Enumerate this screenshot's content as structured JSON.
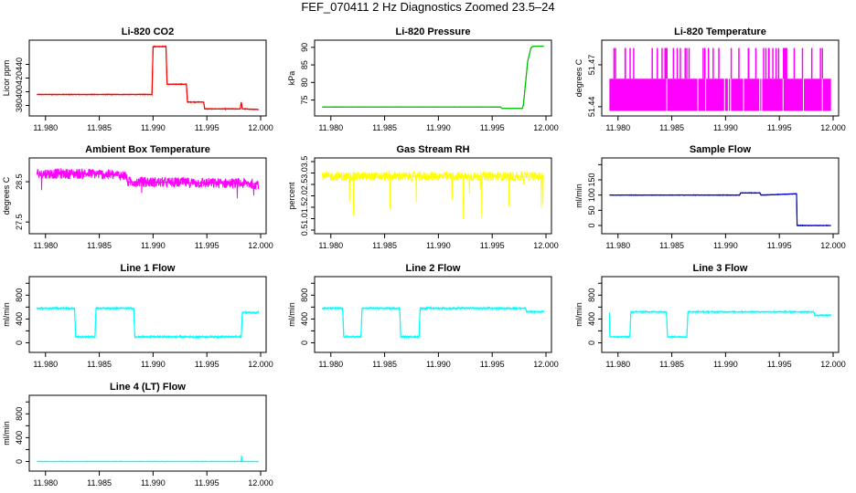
{
  "figure": {
    "title": "FEF_070411  2 Hz Diagnostics Zoomed 23.5–24",
    "colors": {
      "red": "#ff0000",
      "green": "#00bb00",
      "magenta": "#ff00ff",
      "yellow": "#ffff00",
      "blue": "#0000cc",
      "cyan": "#00ffff"
    }
  },
  "chart_data": [
    {
      "type": "line",
      "title": "Li-820 CO2",
      "ylabel": "Licor ppm",
      "color": "#ff0000",
      "xlim": [
        11.979,
        12.0
      ],
      "ylim": [
        370,
        470
      ],
      "xticks": [
        "11.980",
        "11.985",
        "11.990",
        "11.995",
        "12.000"
      ],
      "yticks": [
        "380",
        "400",
        "420",
        "440"
      ],
      "noise": 0.6,
      "series": [
        {
          "x": [
            11.9792,
            11.9899,
            11.99,
            11.9912,
            11.9913,
            11.9931,
            11.9932,
            11.9947,
            11.9948,
            11.9981,
            11.9982,
            11.9983,
            11.9984,
            11.9998
          ],
          "y": [
            396,
            396,
            466,
            466,
            411,
            411,
            385,
            385,
            375,
            375,
            385,
            375,
            375,
            374
          ]
        }
      ]
    },
    {
      "type": "line",
      "title": "Li-820 Pressure",
      "ylabel": "kPa",
      "color": "#00bb00",
      "xlim": [
        11.979,
        12.0
      ],
      "ylim": [
        71.5,
        91
      ],
      "xticks": [
        "11.980",
        "11.985",
        "11.990",
        "11.995",
        "12.000"
      ],
      "yticks": [
        "75",
        "80",
        "85",
        "90"
      ],
      "noise": 0.05,
      "series": [
        {
          "x": [
            11.9792,
            11.9958,
            11.9959,
            11.9978,
            11.9979,
            11.9983,
            11.9986,
            11.9988,
            11.9998
          ],
          "y": [
            73,
            73,
            72.6,
            72.6,
            73.5,
            86,
            89.8,
            90.3,
            90.3
          ]
        }
      ]
    },
    {
      "type": "step",
      "title": "Li-820 Temperature",
      "ylabel": "degrees C",
      "color": "#ff00ff",
      "xlim": [
        11.979,
        12.0
      ],
      "ylim": [
        51.436,
        51.485
      ],
      "xticks": [
        "11.980",
        "11.985",
        "11.990",
        "11.995",
        "12.000"
      ],
      "yticks": [
        "51.44",
        "51.47"
      ],
      "levels": [
        51.437,
        51.46,
        51.482
      ],
      "series": [
        {
          "x": [
            11.9792,
            11.9998
          ],
          "y": [
            51.46,
            51.46
          ]
        }
      ]
    },
    {
      "type": "line",
      "title": "Ambient Box Temperature",
      "ylabel": "degrees C",
      "color": "#ff00ff",
      "xlim": [
        11.979,
        12.0
      ],
      "ylim": [
        27.3,
        29.0
      ],
      "xticks": [
        "11.980",
        "11.985",
        "11.990",
        "11.995",
        "12.000"
      ],
      "yticks": [
        "27.5",
        "28.5"
      ],
      "noise": 0.13,
      "series": [
        {
          "x": [
            11.9792,
            11.9845,
            11.9875,
            11.9876,
            11.9998
          ],
          "y": [
            28.7,
            28.7,
            28.65,
            28.5,
            28.45
          ]
        }
      ]
    },
    {
      "type": "line",
      "title": "Gas Stream RH",
      "ylabel": "percent",
      "color": "#ffff00",
      "xlim": [
        11.979,
        12.0
      ],
      "ylim": [
        0.5,
        3.5
      ],
      "xticks": [
        "11.980",
        "11.985",
        "11.990",
        "11.995",
        "12.000"
      ],
      "yticks": [
        "0.5",
        "1.5",
        "2.5",
        "3.5"
      ],
      "ytick_values": [
        0.5,
        1.0,
        1.5,
        2.0,
        2.5,
        3.0,
        3.5
      ],
      "ytick_labels": [
        "0.5",
        "1.0",
        "1.5",
        "2.0",
        "2.5",
        "3.0",
        "3.5"
      ],
      "noise": 0.2,
      "series": [
        {
          "x": [
            11.9792,
            11.9998
          ],
          "y": [
            2.85,
            2.85
          ]
        }
      ]
    },
    {
      "type": "line",
      "title": "Sample Flow",
      "ylabel": "ml/min",
      "color": "#0000cc",
      "xlim": [
        11.979,
        12.0
      ],
      "ylim": [
        -15,
        210
      ],
      "xticks": [
        "11.980",
        "11.985",
        "11.990",
        "11.995",
        "12.000"
      ],
      "ytick_values": [
        0,
        50,
        100,
        150,
        200
      ],
      "ytick_labels": [
        "0",
        "50",
        "100",
        "150",
        ""
      ],
      "noise": 1.0,
      "series": [
        {
          "x": [
            11.9792,
            11.9913,
            11.9914,
            11.9932,
            11.9933,
            11.9966,
            11.99665,
            11.9998
          ],
          "y": [
            100,
            100,
            107,
            107,
            100,
            104,
            0,
            0
          ]
        }
      ]
    },
    {
      "type": "line",
      "title": "Line 1 Flow",
      "ylabel": "ml/min",
      "color": "#00ffff",
      "xlim": [
        11.979,
        12.0
      ],
      "ylim": [
        -100,
        1050
      ],
      "xticks": [
        "11.980",
        "11.985",
        "11.990",
        "11.995",
        "12.000"
      ],
      "ytick_values": [
        0,
        200,
        400,
        600,
        800,
        1000
      ],
      "ytick_labels": [
        "0",
        "",
        "400",
        "",
        "800",
        ""
      ],
      "noise": 15,
      "series": [
        {
          "x": [
            11.9792,
            11.9827,
            11.9828,
            11.9846,
            11.9847,
            11.9882,
            11.9883,
            11.9982,
            11.9983,
            11.9998
          ],
          "y": [
            580,
            580,
            100,
            100,
            580,
            580,
            100,
            100,
            510,
            510
          ]
        }
      ]
    },
    {
      "type": "line",
      "title": "Line 2 Flow",
      "ylabel": "ml/min",
      "color": "#00ffff",
      "xlim": [
        11.979,
        12.0
      ],
      "ylim": [
        -100,
        1050
      ],
      "xticks": [
        "11.980",
        "11.985",
        "11.990",
        "11.995",
        "12.000"
      ],
      "ytick_values": [
        0,
        200,
        400,
        600,
        800,
        1000
      ],
      "ytick_labels": [
        "0",
        "",
        "400",
        "",
        "800",
        ""
      ],
      "noise": 15,
      "series": [
        {
          "x": [
            11.9792,
            11.9811,
            11.9812,
            11.9828,
            11.9829,
            11.9864,
            11.9865,
            11.9882,
            11.9883,
            11.9981,
            11.9982,
            11.9998
          ],
          "y": [
            580,
            580,
            100,
            100,
            580,
            580,
            100,
            100,
            580,
            580,
            520,
            520
          ]
        }
      ]
    },
    {
      "type": "line",
      "title": "Line 3 Flow",
      "ylabel": "ml/min",
      "color": "#00ffff",
      "xlim": [
        11.979,
        12.0
      ],
      "ylim": [
        -100,
        1050
      ],
      "xticks": [
        "11.980",
        "11.985",
        "11.990",
        "11.995",
        "12.000"
      ],
      "ytick_values": [
        0,
        200,
        400,
        600,
        800,
        1000
      ],
      "ytick_labels": [
        "0",
        "",
        "400",
        "",
        "800",
        ""
      ],
      "noise": 12,
      "series": [
        {
          "x": [
            11.9792,
            11.97925,
            11.9811,
            11.9812,
            11.9845,
            11.9846,
            11.9864,
            11.9865,
            11.9982,
            11.9983,
            11.9998
          ],
          "y": [
            500,
            100,
            100,
            520,
            520,
            100,
            100,
            520,
            520,
            460,
            460
          ]
        }
      ]
    },
    {
      "type": "line",
      "title": "Line 4 (LT) Flow",
      "ylabel": "ml/min",
      "color": "#00ffff",
      "xlim": [
        11.979,
        12.0
      ],
      "ylim": [
        -100,
        1050
      ],
      "xticks": [
        "11.980",
        "11.985",
        "11.990",
        "11.995",
        "12.000"
      ],
      "ytick_values": [
        0,
        200,
        400,
        600,
        800,
        1000
      ],
      "ytick_labels": [
        "0",
        "",
        "400",
        "",
        "800",
        ""
      ],
      "noise": 4,
      "series": [
        {
          "x": [
            11.9792,
            11.9982,
            11.99822,
            11.99826,
            11.99828,
            11.9998
          ],
          "y": [
            0,
            0,
            100,
            10,
            0,
            0
          ]
        }
      ]
    }
  ]
}
